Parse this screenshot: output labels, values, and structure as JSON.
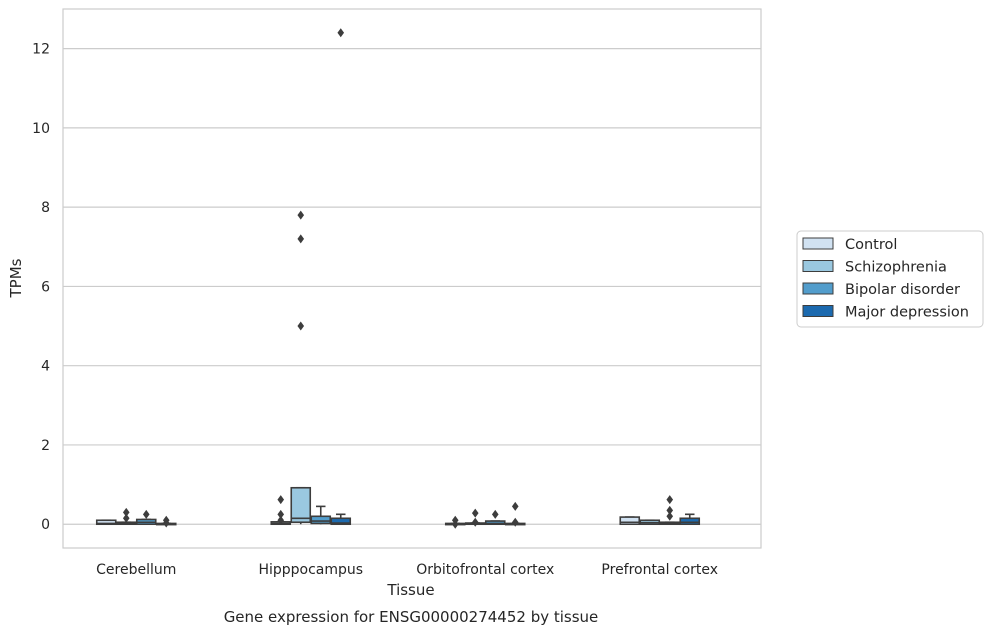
{
  "chart_data": {
    "type": "box",
    "xlabel": "Tissue",
    "ylabel": "TPMs",
    "caption": "Gene expression for ENSG00000274452 by tissue",
    "ylim": [
      -0.6,
      13.0
    ],
    "yticks": [
      "0",
      "2",
      "4",
      "6",
      "8",
      "10",
      "12"
    ],
    "grid": "horizontal",
    "legend_placement": "right",
    "categories": [
      "Cerebellum",
      "Hipppocampus",
      "Orbitofrontal cortex",
      "Prefrontal cortex"
    ],
    "series": [
      {
        "name": "Control",
        "color": "#d1e2f2",
        "boxes": [
          {
            "q1": 0.0,
            "median": 0.02,
            "q3": 0.1,
            "whisker_low": 0.0,
            "whisker_high": 0.1,
            "outliers": []
          },
          {
            "q1": 0.0,
            "median": 0.02,
            "q3": 0.06,
            "whisker_low": 0.0,
            "whisker_high": 0.06,
            "outliers": [
              0.1,
              0.25,
              0.62
            ]
          },
          {
            "q1": 0.0,
            "median": 0.0,
            "q3": 0.02,
            "whisker_low": 0.0,
            "whisker_high": 0.02,
            "outliers": [
              0.0,
              0.1
            ]
          },
          {
            "q1": 0.0,
            "median": 0.05,
            "q3": 0.18,
            "whisker_low": 0.0,
            "whisker_high": 0.18,
            "outliers": []
          }
        ]
      },
      {
        "name": "Schizophrenia",
        "color": "#9ac8e0",
        "boxes": [
          {
            "q1": 0.0,
            "median": 0.02,
            "q3": 0.05,
            "whisker_low": 0.0,
            "whisker_high": 0.05,
            "outliers": [
              0.15,
              0.3
            ]
          },
          {
            "q1": 0.05,
            "median": 0.15,
            "q3": 0.92,
            "whisker_low": 0.0,
            "whisker_high": 0.92,
            "outliers": [
              5.0,
              7.2,
              7.8
            ]
          },
          {
            "q1": 0.0,
            "median": 0.0,
            "q3": 0.03,
            "whisker_low": 0.0,
            "whisker_high": 0.03,
            "outliers": [
              0.05,
              0.28
            ]
          },
          {
            "q1": 0.0,
            "median": 0.04,
            "q3": 0.1,
            "whisker_low": 0.0,
            "whisker_high": 0.1,
            "outliers": []
          }
        ]
      },
      {
        "name": "Bipolar disorder",
        "color": "#529dcc",
        "boxes": [
          {
            "q1": 0.0,
            "median": 0.05,
            "q3": 0.12,
            "whisker_low": 0.0,
            "whisker_high": 0.12,
            "outliers": [
              0.25
            ]
          },
          {
            "q1": 0.02,
            "median": 0.08,
            "q3": 0.2,
            "whisker_low": 0.0,
            "whisker_high": 0.45,
            "outliers": []
          },
          {
            "q1": 0.0,
            "median": 0.02,
            "q3": 0.08,
            "whisker_low": 0.0,
            "whisker_high": 0.08,
            "outliers": [
              0.25
            ]
          },
          {
            "q1": 0.0,
            "median": 0.03,
            "q3": 0.05,
            "whisker_low": 0.0,
            "whisker_high": 0.05,
            "outliers": [
              0.2,
              0.35,
              0.62
            ]
          }
        ]
      },
      {
        "name": "Major depression",
        "color": "#1c6aaf",
        "boxes": [
          {
            "q1": 0.0,
            "median": 0.0,
            "q3": 0.02,
            "whisker_low": 0.0,
            "whisker_high": 0.02,
            "outliers": [
              0.03,
              0.1
            ]
          },
          {
            "q1": 0.0,
            "median": 0.03,
            "q3": 0.15,
            "whisker_low": 0.0,
            "whisker_high": 0.25,
            "outliers": [
              12.4
            ]
          },
          {
            "q1": 0.0,
            "median": 0.0,
            "q3": 0.02,
            "whisker_low": 0.0,
            "whisker_high": 0.02,
            "outliers": [
              0.05,
              0.45
            ]
          },
          {
            "q1": 0.0,
            "median": 0.05,
            "q3": 0.15,
            "whisker_low": 0.0,
            "whisker_high": 0.25,
            "outliers": []
          }
        ]
      }
    ]
  }
}
